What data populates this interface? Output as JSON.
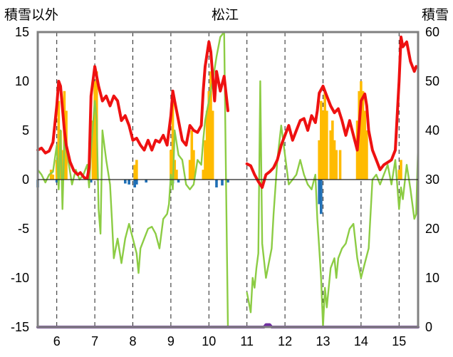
{
  "chart_data": {
    "type": "line",
    "title": "松江",
    "ylabel_left": "積雪以外",
    "ylabel_right": "積雪",
    "x_ticks": [
      "6",
      "7",
      "8",
      "9",
      "10",
      "11",
      "12",
      "13",
      "14",
      "15"
    ],
    "x_range": [
      5.5,
      15.5
    ],
    "ylim_left": [
      -15,
      15
    ],
    "yticks_left": [
      "15",
      "10",
      "5",
      "0",
      "-5",
      "-10",
      "-15"
    ],
    "ylim_right": [
      0,
      60
    ],
    "yticks_right": [
      "60",
      "50",
      "40",
      "30",
      "20",
      "10",
      "0"
    ],
    "grid": "vertical-dashed",
    "colors": {
      "red_line": "#ee1111",
      "green_line": "#8ccc44",
      "orange_bars": "#ffbb00",
      "blue_bars": "#1f6fb5",
      "purple_line": "#7030a0",
      "axis": "#808080"
    },
    "series": [
      {
        "axis": "left",
        "style": "red_line",
        "points": [
          [
            5.5,
            3.0
          ],
          [
            5.6,
            3.2
          ],
          [
            5.7,
            2.7
          ],
          [
            5.8,
            2.9
          ],
          [
            5.9,
            3.8
          ],
          [
            6.0,
            7.5
          ],
          [
            6.05,
            10.0
          ],
          [
            6.1,
            9.5
          ],
          [
            6.2,
            5.0
          ],
          [
            6.25,
            3.5
          ],
          [
            6.35,
            1.8
          ],
          [
            6.45,
            0.9
          ],
          [
            6.55,
            0.5
          ],
          [
            6.62,
            0.7
          ],
          [
            6.72,
            0.2
          ],
          [
            6.8,
            0.1
          ],
          [
            6.85,
            1.2
          ],
          [
            6.9,
            8.5
          ],
          [
            7.0,
            11.5
          ],
          [
            7.1,
            9.5
          ],
          [
            7.2,
            8.0
          ],
          [
            7.3,
            8.5
          ],
          [
            7.4,
            7.5
          ],
          [
            7.5,
            8.5
          ],
          [
            7.6,
            8.0
          ],
          [
            7.7,
            6.0
          ],
          [
            7.8,
            6.5
          ],
          [
            7.9,
            5.5
          ],
          [
            8.0,
            4.0
          ],
          [
            8.1,
            4.2
          ],
          [
            8.2,
            3.5
          ],
          [
            8.3,
            3.0
          ],
          [
            8.4,
            4.0
          ],
          [
            8.5,
            3.0
          ],
          [
            8.6,
            4.0
          ],
          [
            8.7,
            3.8
          ],
          [
            8.8,
            4.5
          ],
          [
            8.9,
            3.5
          ],
          [
            9.0,
            6.5
          ],
          [
            9.05,
            9.0
          ],
          [
            9.1,
            8.0
          ],
          [
            9.2,
            6.0
          ],
          [
            9.3,
            4.0
          ],
          [
            9.4,
            3.5
          ],
          [
            9.5,
            5.5
          ],
          [
            9.6,
            5.0
          ],
          [
            9.7,
            4.8
          ],
          [
            9.8,
            5.5
          ],
          [
            9.85,
            9.0
          ],
          [
            9.9,
            11.5
          ],
          [
            10.0,
            14.0
          ],
          [
            10.05,
            13.0
          ],
          [
            10.15,
            8.0
          ],
          [
            10.2,
            11.0
          ],
          [
            10.3,
            9.0
          ],
          [
            10.4,
            10.5
          ],
          [
            10.5,
            7.0
          ]
        ]
      },
      {
        "axis": "left",
        "style": "red_line",
        "points": [
          [
            11.0,
            1.6
          ],
          [
            11.1,
            1.4
          ],
          [
            11.2,
            0.5
          ],
          [
            11.3,
            -0.2
          ],
          [
            11.4,
            -0.8
          ],
          [
            11.5,
            0.5
          ],
          [
            11.6,
            0.8
          ],
          [
            11.7,
            1.2
          ],
          [
            11.8,
            2.0
          ],
          [
            11.9,
            3.5
          ],
          [
            12.0,
            4.5
          ],
          [
            12.1,
            5.5
          ],
          [
            12.2,
            4.0
          ],
          [
            12.3,
            5.0
          ],
          [
            12.4,
            6.0
          ],
          [
            12.5,
            6.2
          ],
          [
            12.6,
            5.0
          ],
          [
            12.7,
            6.5
          ],
          [
            12.8,
            5.8
          ],
          [
            12.85,
            7.0
          ],
          [
            12.9,
            8.8
          ],
          [
            13.0,
            9.5
          ],
          [
            13.05,
            9.0
          ],
          [
            13.1,
            8.5
          ],
          [
            13.2,
            7.5
          ],
          [
            13.3,
            6.8
          ],
          [
            13.4,
            7.2
          ],
          [
            13.5,
            6.0
          ],
          [
            13.6,
            4.5
          ],
          [
            13.7,
            6.0
          ],
          [
            13.8,
            4.5
          ],
          [
            13.9,
            3.0
          ],
          [
            14.0,
            8.0
          ],
          [
            14.1,
            8.7
          ],
          [
            14.15,
            7.5
          ],
          [
            14.2,
            5.0
          ],
          [
            14.3,
            3.0
          ],
          [
            14.4,
            2.0
          ],
          [
            14.5,
            1.0
          ],
          [
            14.6,
            1.5
          ],
          [
            14.8,
            2.0
          ],
          [
            14.9,
            3.0
          ],
          [
            15.0,
            10.0
          ],
          [
            15.05,
            14.5
          ],
          [
            15.1,
            13.5
          ],
          [
            15.2,
            14.0
          ],
          [
            15.3,
            12.0
          ],
          [
            15.4,
            11.0
          ],
          [
            15.45,
            11.5
          ]
        ]
      },
      {
        "axis": "left",
        "style": "green_line",
        "points": [
          [
            5.5,
            1.0
          ],
          [
            5.6,
            0.5
          ],
          [
            5.7,
            -0.3
          ],
          [
            5.8,
            0.5
          ],
          [
            5.9,
            0.8
          ],
          [
            6.0,
            3.5
          ],
          [
            6.05,
            -1.0
          ],
          [
            6.1,
            5.0
          ],
          [
            6.15,
            -3.0
          ],
          [
            6.2,
            4.0
          ],
          [
            6.3,
            2.0
          ],
          [
            6.4,
            -0.5
          ],
          [
            6.5,
            1.0
          ],
          [
            6.6,
            0.0
          ],
          [
            6.7,
            0.5
          ],
          [
            6.8,
            1.5
          ],
          [
            6.85,
            -0.8
          ],
          [
            6.9,
            3.0
          ],
          [
            7.0,
            8.0
          ],
          [
            7.05,
            6.0
          ],
          [
            7.1,
            -3.0
          ],
          [
            7.15,
            -5.5
          ],
          [
            7.2,
            5.0
          ],
          [
            7.3,
            2.0
          ],
          [
            7.4,
            -0.5
          ],
          [
            7.45,
            -4.0
          ],
          [
            7.5,
            -8.0
          ],
          [
            7.6,
            -6.0
          ],
          [
            7.7,
            -8.5
          ],
          [
            7.8,
            -6.0
          ],
          [
            7.9,
            -4.5
          ],
          [
            8.0,
            -6.0
          ],
          [
            8.1,
            -7.5
          ],
          [
            8.15,
            -9.5
          ],
          [
            8.2,
            -7.0
          ],
          [
            8.3,
            -6.0
          ],
          [
            8.4,
            -5.0
          ],
          [
            8.5,
            -4.8
          ],
          [
            8.6,
            -5.5
          ],
          [
            8.7,
            -7.0
          ],
          [
            8.8,
            -4.0
          ],
          [
            8.9,
            -3.5
          ],
          [
            8.95,
            -2.5
          ],
          [
            9.0,
            0.5
          ],
          [
            9.05,
            -1.0
          ],
          [
            9.1,
            5.0
          ],
          [
            9.2,
            2.5
          ],
          [
            9.3,
            2.0
          ],
          [
            9.4,
            -0.5
          ],
          [
            9.5,
            -1.0
          ],
          [
            9.6,
            -0.5
          ],
          [
            9.7,
            2.0
          ],
          [
            9.8,
            1.5
          ],
          [
            9.85,
            4.0
          ],
          [
            9.9,
            6.0
          ],
          [
            10.0,
            8.0
          ],
          [
            10.1,
            10.0
          ],
          [
            10.2,
            12.5
          ],
          [
            10.3,
            14.5
          ],
          [
            10.4,
            15.0
          ],
          [
            10.45,
            0.0
          ],
          [
            10.5,
            -15.0
          ]
        ]
      },
      {
        "axis": "left",
        "style": "green_line",
        "points": [
          [
            11.0,
            -11.5
          ],
          [
            11.05,
            -12.5
          ],
          [
            11.1,
            -13.5
          ],
          [
            11.15,
            -10.0
          ],
          [
            11.2,
            -11.0
          ],
          [
            11.25,
            -9.0
          ],
          [
            11.3,
            -7.5
          ],
          [
            11.35,
            10.0
          ],
          [
            11.4,
            -6.5
          ],
          [
            11.5,
            -10.0
          ],
          [
            11.6,
            -8.0
          ],
          [
            11.65,
            -7.0
          ],
          [
            11.7,
            -3.5
          ],
          [
            11.8,
            2.0
          ],
          [
            11.9,
            5.5
          ],
          [
            12.0,
            2.5
          ],
          [
            12.1,
            -0.5
          ],
          [
            12.2,
            0.0
          ],
          [
            12.3,
            0.5
          ],
          [
            12.4,
            2.0
          ],
          [
            12.5,
            0.5
          ],
          [
            12.6,
            -0.5
          ],
          [
            12.7,
            -1.0
          ],
          [
            12.8,
            0.5
          ],
          [
            12.85,
            -4.0
          ],
          [
            12.9,
            -7.0
          ],
          [
            12.95,
            -10.0
          ],
          [
            13.0,
            -15.0
          ],
          [
            13.05,
            -11.0
          ],
          [
            13.1,
            -13.0
          ],
          [
            13.2,
            -9.0
          ],
          [
            13.3,
            -8.0
          ],
          [
            13.35,
            -10.0
          ],
          [
            13.4,
            -8.0
          ],
          [
            13.5,
            -7.0
          ],
          [
            13.6,
            -6.5
          ],
          [
            13.7,
            -5.0
          ],
          [
            13.8,
            -4.5
          ],
          [
            13.9,
            -8.0
          ],
          [
            14.0,
            -10.0
          ],
          [
            14.1,
            -8.5
          ],
          [
            14.2,
            -7.0
          ],
          [
            14.3,
            0.0
          ],
          [
            14.4,
            0.5
          ],
          [
            14.5,
            -0.5
          ],
          [
            14.6,
            0.5
          ],
          [
            14.7,
            1.5
          ],
          [
            14.8,
            -0.5
          ],
          [
            14.9,
            2.0
          ],
          [
            15.0,
            -3.0
          ],
          [
            15.05,
            -0.8
          ],
          [
            15.1,
            -2.0
          ],
          [
            15.2,
            1.5
          ],
          [
            15.3,
            -1.0
          ],
          [
            15.4,
            -4.0
          ],
          [
            15.45,
            -3.5
          ],
          [
            15.5,
            3.5
          ]
        ]
      },
      {
        "axis": "right",
        "style": "purple_line",
        "points": [
          [
            5.5,
            0
          ],
          [
            11.45,
            0
          ],
          [
            11.5,
            0.5
          ],
          [
            11.6,
            0.5
          ],
          [
            11.65,
            0
          ],
          [
            15.5,
            0
          ]
        ]
      }
    ],
    "bars": [
      {
        "axis": "left",
        "style": "orange_bars",
        "points": [
          [
            5.85,
            1
          ],
          [
            5.9,
            0.5
          ],
          [
            6.0,
            2
          ],
          [
            6.05,
            8
          ],
          [
            6.1,
            5
          ],
          [
            6.15,
            3
          ],
          [
            6.2,
            9
          ],
          [
            6.25,
            7
          ],
          [
            6.95,
            6
          ],
          [
            7.0,
            10
          ],
          [
            7.05,
            11
          ],
          [
            8.05,
            1.5
          ],
          [
            8.1,
            2
          ],
          [
            9.0,
            3
          ],
          [
            9.05,
            9
          ],
          [
            9.1,
            2
          ],
          [
            9.15,
            1
          ],
          [
            9.5,
            2
          ],
          [
            9.55,
            5
          ],
          [
            9.6,
            3
          ],
          [
            9.85,
            1
          ],
          [
            9.9,
            4
          ],
          [
            9.95,
            7
          ],
          [
            10.0,
            9
          ],
          [
            10.05,
            11
          ],
          [
            10.1,
            7
          ],
          [
            12.9,
            4
          ],
          [
            12.95,
            8
          ],
          [
            13.0,
            7
          ],
          [
            13.05,
            9
          ],
          [
            13.1,
            7
          ],
          [
            13.2,
            5
          ],
          [
            13.25,
            6
          ],
          [
            13.3,
            4
          ],
          [
            13.35,
            3
          ],
          [
            13.45,
            3
          ],
          [
            13.9,
            6
          ],
          [
            13.95,
            9
          ],
          [
            14.0,
            10
          ],
          [
            14.05,
            9
          ],
          [
            14.1,
            7
          ],
          [
            14.15,
            5
          ],
          [
            15.0,
            1
          ],
          [
            15.05,
            2
          ]
        ]
      },
      {
        "axis": "left",
        "style": "blue_bars",
        "points": [
          [
            5.5,
            -0.8
          ],
          [
            6.0,
            -0.3
          ],
          [
            6.9,
            -0.3
          ],
          [
            7.8,
            -0.4
          ],
          [
            7.9,
            -0.5
          ],
          [
            8.05,
            -0.8
          ],
          [
            8.1,
            -0.5
          ],
          [
            8.35,
            -0.3
          ],
          [
            9.05,
            -0.4
          ],
          [
            9.2,
            -0.3
          ],
          [
            10.2,
            -0.8
          ],
          [
            10.35,
            -0.6
          ],
          [
            10.5,
            -0.3
          ],
          [
            12.9,
            -2.5
          ],
          [
            12.95,
            -3.5
          ]
        ]
      }
    ]
  }
}
